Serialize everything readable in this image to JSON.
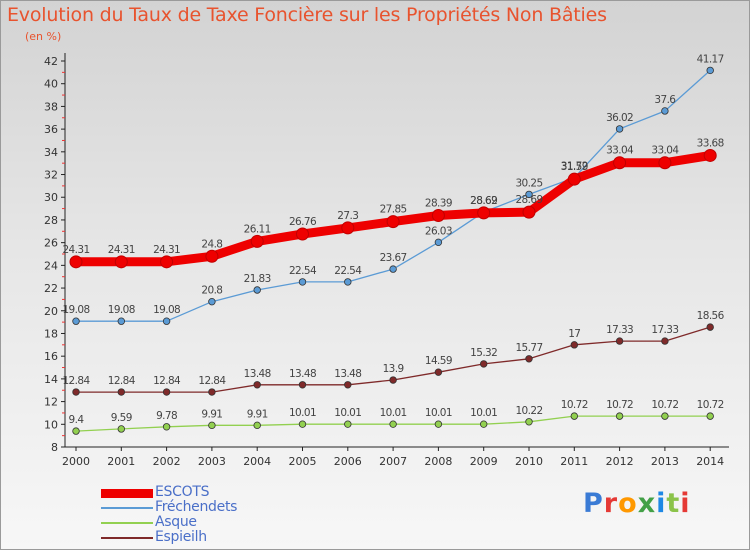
{
  "title": "Evolution du Taux de Taxe Foncière sur les Propriétés Non Bâties",
  "unit": "(en %)",
  "logo": {
    "text": "Proxiti",
    "colors": [
      "#3a7bd5",
      "#e53935",
      "#ff9800",
      "#43a047",
      "#1e88e5",
      "#8bc34a",
      "#e53935"
    ]
  },
  "chart_data": {
    "type": "line",
    "title": "Evolution du Taux de Taxe Foncière sur les Propriétés Non Bâties",
    "ylabel": "(en %)",
    "xlabel": "",
    "x": [
      "2000",
      "2001",
      "2002",
      "2003",
      "2004",
      "2005",
      "2006",
      "2007",
      "2008",
      "2009",
      "2010",
      "2011",
      "2012",
      "2013",
      "2014"
    ],
    "ylim": [
      8,
      42
    ],
    "yticks": [
      8,
      10,
      12,
      14,
      16,
      18,
      20,
      22,
      24,
      26,
      28,
      30,
      32,
      34,
      36,
      38,
      40,
      42
    ],
    "grid": false,
    "legend_position": "bottom-left",
    "series": [
      {
        "name": "ESCOTS",
        "color": "#ee0000",
        "values": [
          24.31,
          24.31,
          24.31,
          24.8,
          26.11,
          26.76,
          27.3,
          27.85,
          28.39,
          28.62,
          28.69,
          31.59,
          33.04,
          33.04,
          33.68
        ],
        "labels": [
          "24.31",
          "24.31",
          "24.31",
          "24.8",
          "26.11",
          "26.76",
          "27.3",
          "27.85",
          "28.39",
          "28.62",
          "28.69",
          "31.59",
          "33.04",
          "33.04",
          "33.68"
        ]
      },
      {
        "name": "Fréchendets",
        "color": "#5b9bd5",
        "values": [
          19.08,
          19.08,
          19.08,
          20.8,
          21.83,
          22.54,
          22.54,
          23.67,
          26.03,
          28.69,
          30.25,
          31.72,
          36.02,
          37.6,
          41.17
        ],
        "labels": [
          "19.08",
          "19.08",
          "19.08",
          "20.8",
          "21.83",
          "22.54",
          "22.54",
          "23.67",
          "26.03",
          "28.69",
          "30.25",
          "31.72",
          "36.02",
          "37.6",
          "41.17"
        ]
      },
      {
        "name": "Asque",
        "color": "#92d050",
        "values": [
          9.4,
          9.59,
          9.78,
          9.91,
          9.91,
          10.01,
          10.01,
          10.01,
          10.01,
          10.01,
          10.22,
          10.72,
          10.72,
          10.72,
          10.72
        ],
        "labels": [
          "9.4",
          "9.59",
          "9.78",
          "9.91",
          "9.91",
          "10.01",
          "10.01",
          "10.01",
          "10.01",
          "10.01",
          "10.22",
          "10.72",
          "10.72",
          "10.72",
          "10.72"
        ]
      },
      {
        "name": "Espieilh",
        "color": "#7f2a2a",
        "values": [
          12.84,
          12.84,
          12.84,
          12.84,
          13.48,
          13.48,
          13.48,
          13.9,
          14.59,
          15.32,
          15.77,
          17,
          17.33,
          17.33,
          18.56
        ],
        "labels": [
          "12.84",
          "12.84",
          "12.84",
          "12.84",
          "13.48",
          "13.48",
          "13.48",
          "13.9",
          "14.59",
          "15.32",
          "15.77",
          "17",
          "17.33",
          "17.33",
          "18.56"
        ]
      }
    ]
  }
}
